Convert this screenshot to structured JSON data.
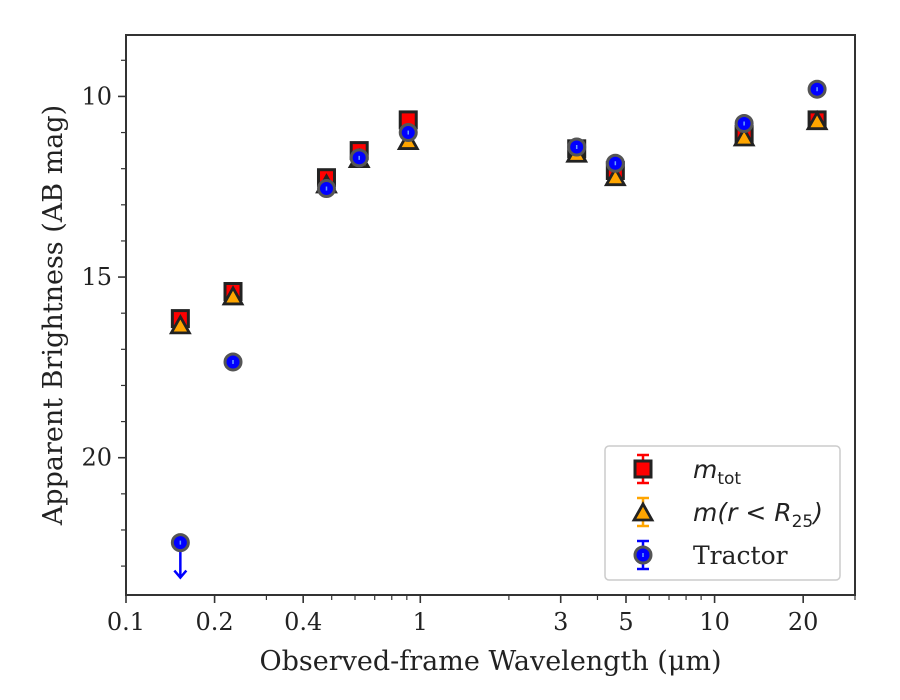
{
  "chart_data": {
    "type": "scatter",
    "xlabel": "Observed-frame Wavelength (μm)",
    "ylabel": "Apparent Brightness (AB mag)",
    "x_scale": "log",
    "xlim": [
      0.1,
      30
    ],
    "ylim": [
      23.8,
      8.3
    ],
    "y_inverted": true,
    "grid": false,
    "legend_position": "lower-right",
    "x_ticks": [
      {
        "value": 0.1,
        "label": "0.1"
      },
      {
        "value": 0.2,
        "label": "0.2"
      },
      {
        "value": 0.4,
        "label": "0.4"
      },
      {
        "value": 1,
        "label": "1"
      },
      {
        "value": 3,
        "label": "3"
      },
      {
        "value": 5,
        "label": "5"
      },
      {
        "value": 10,
        "label": "10"
      },
      {
        "value": 20,
        "label": "20"
      }
    ],
    "x_minor_ticks": [
      0.3,
      0.5,
      0.6,
      0.7,
      0.8,
      0.9,
      2,
      4,
      6,
      7,
      8,
      9,
      30
    ],
    "y_ticks": [
      {
        "value": 10,
        "label": "10"
      },
      {
        "value": 15,
        "label": "15"
      },
      {
        "value": 20,
        "label": "20"
      }
    ],
    "y_minor_ticks": [
      9,
      11,
      12,
      13,
      14,
      16,
      17,
      18,
      19,
      21,
      22,
      23
    ],
    "series": [
      {
        "name": "m_tot",
        "legend_main": "m",
        "legend_sub": "tot",
        "marker": "square",
        "color": "#ff0000",
        "edge": "#222222",
        "points": [
          {
            "x": 0.153,
            "y": 16.15
          },
          {
            "x": 0.231,
            "y": 15.4
          },
          {
            "x": 0.48,
            "y": 12.25
          },
          {
            "x": 0.62,
            "y": 11.5
          },
          {
            "x": 0.91,
            "y": 10.65
          },
          {
            "x": 3.4,
            "y": 11.45
          },
          {
            "x": 4.6,
            "y": 12.05
          },
          {
            "x": 12.6,
            "y": 11.05
          },
          {
            "x": 22.3,
            "y": 10.65
          }
        ]
      },
      {
        "name": "m(r < R_25)",
        "legend_main": "m(r < R",
        "legend_sub": "25",
        "legend_end": ")",
        "marker": "triangle",
        "color": "#ffa500",
        "edge": "#222222",
        "points": [
          {
            "x": 0.153,
            "y": 16.35
          },
          {
            "x": 0.231,
            "y": 15.55
          },
          {
            "x": 0.48,
            "y": 12.45
          },
          {
            "x": 0.62,
            "y": 11.75
          },
          {
            "x": 0.91,
            "y": 11.25
          },
          {
            "x": 3.4,
            "y": 11.6
          },
          {
            "x": 4.6,
            "y": 12.25
          },
          {
            "x": 12.6,
            "y": 11.15
          },
          {
            "x": 22.3,
            "y": 10.7
          }
        ]
      },
      {
        "name": "Tractor",
        "marker": "circle",
        "color": "#0000ff",
        "edge": "#555555",
        "points": [
          {
            "x": 0.153,
            "y": 22.35,
            "upper_limit": true
          },
          {
            "x": 0.231,
            "y": 17.35
          },
          {
            "x": 0.48,
            "y": 12.55
          },
          {
            "x": 0.62,
            "y": 11.7
          },
          {
            "x": 0.91,
            "y": 11.0
          },
          {
            "x": 3.4,
            "y": 11.4
          },
          {
            "x": 4.6,
            "y": 11.85
          },
          {
            "x": 12.6,
            "y": 10.75
          },
          {
            "x": 22.3,
            "y": 9.8
          }
        ]
      }
    ]
  }
}
